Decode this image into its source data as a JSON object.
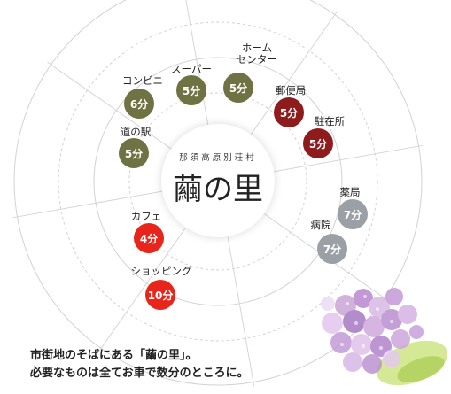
{
  "center": {
    "subtitle": "那須高原別荘村",
    "title": "繭の里"
  },
  "colors": {
    "olive": "#6f7242",
    "darkred": "#8f1c1c",
    "red": "#e8251b",
    "gray": "#9aa0a6"
  },
  "places": [
    {
      "id": "conbini",
      "label": "コンビニ",
      "time": "6分",
      "color": "#6f7242"
    },
    {
      "id": "super",
      "label": "スーパー",
      "time": "5分",
      "color": "#6f7242"
    },
    {
      "id": "homecenter",
      "label": "ホーム\nセンター",
      "time": "5分",
      "color": "#6f7242"
    },
    {
      "id": "michinoeki",
      "label": "道の駅",
      "time": "5分",
      "color": "#6f7242"
    },
    {
      "id": "post",
      "label": "郵便局",
      "time": "5分",
      "color": "#8f1c1c"
    },
    {
      "id": "police",
      "label": "駐在所",
      "time": "5分",
      "color": "#8f1c1c"
    },
    {
      "id": "pharmacy",
      "label": "薬局",
      "time": "7分",
      "color": "#9aa0a6"
    },
    {
      "id": "hospital",
      "label": "病院",
      "time": "7分",
      "color": "#9aa0a6"
    },
    {
      "id": "cafe",
      "label": "カフェ",
      "time": "4分",
      "color": "#e8251b"
    },
    {
      "id": "shopping",
      "label": "ショッピング",
      "time": "10分",
      "color": "#e8251b"
    }
  ],
  "caption": {
    "line1": "市街地のそばにある「繭の里」。",
    "line2": "必要なものは全てお車で数分のところに。"
  },
  "decoration": {
    "flower": "hydrangea-illustration"
  }
}
